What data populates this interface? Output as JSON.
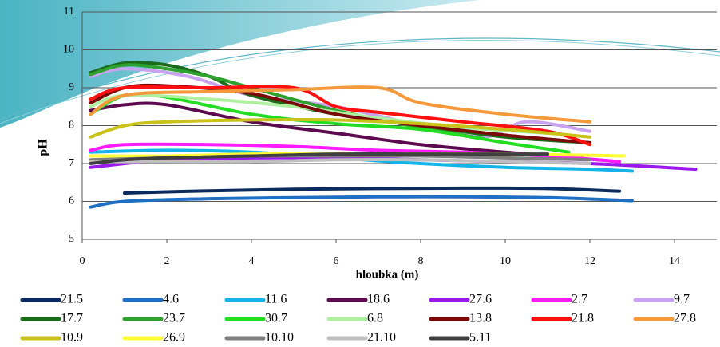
{
  "chart_data": {
    "type": "line",
    "x_label": "hloubka (m)",
    "y_label": "pH",
    "xlim": [
      0,
      15
    ],
    "xticks": [
      0,
      2,
      4,
      6,
      8,
      10,
      12,
      14
    ],
    "ylim": [
      5,
      11
    ],
    "yticks": [
      5,
      6,
      7,
      8,
      9,
      10,
      11
    ],
    "grid": true,
    "legend": "bottom",
    "series": [
      {
        "name": "21.5",
        "color": "#0b2b5e",
        "x": [
          1,
          3,
          5,
          7,
          9,
          11,
          12.7
        ],
        "values": [
          6.22,
          6.28,
          6.32,
          6.34,
          6.35,
          6.34,
          6.27
        ]
      },
      {
        "name": "4.6",
        "color": "#1f6fc5",
        "x": [
          0.2,
          1,
          3,
          5,
          7,
          9,
          11,
          13
        ],
        "values": [
          5.85,
          6.0,
          6.07,
          6.1,
          6.12,
          6.12,
          6.1,
          6.02
        ]
      },
      {
        "name": "11.6",
        "color": "#14b4e8",
        "x": [
          0.2,
          2,
          4,
          6,
          8,
          10,
          12,
          13
        ],
        "values": [
          7.3,
          7.35,
          7.3,
          7.15,
          7.0,
          6.9,
          6.85,
          6.8
        ]
      },
      {
        "name": "18.6",
        "color": "#5c0a4f",
        "x": [
          0.2,
          1,
          2,
          4,
          6,
          8,
          10,
          12.7
        ],
        "values": [
          8.4,
          8.55,
          8.55,
          8.1,
          7.8,
          7.5,
          7.3,
          7.05
        ]
      },
      {
        "name": "27.6",
        "color": "#9a1aeb",
        "x": [
          0.2,
          2,
          4,
          6,
          8,
          10,
          12,
          14.5
        ],
        "values": [
          6.9,
          7.1,
          7.15,
          7.15,
          7.1,
          7.05,
          7.0,
          6.85
        ]
      },
      {
        "name": "2.7",
        "color": "#ff1aff",
        "x": [
          0.2,
          1,
          3,
          5,
          7,
          9,
          11,
          12.7
        ],
        "values": [
          7.35,
          7.5,
          7.5,
          7.45,
          7.35,
          7.3,
          7.2,
          7.05
        ]
      },
      {
        "name": "9.7",
        "color": "#c9a3f0",
        "x": [
          0.2,
          1,
          2.5,
          4,
          6,
          8,
          9.5,
          10.5,
          12
        ],
        "values": [
          9.3,
          9.5,
          9.3,
          8.8,
          8.5,
          8.0,
          7.7,
          8.1,
          7.85
        ]
      },
      {
        "name": "17.7",
        "color": "#1a6b1a",
        "x": [
          0.2,
          1,
          2,
          3,
          4,
          6,
          8,
          10,
          12
        ],
        "values": [
          9.4,
          9.65,
          9.6,
          9.3,
          8.8,
          8.3,
          8.0,
          7.7,
          7.55
        ]
      },
      {
        "name": "23.7",
        "color": "#2ea12e",
        "x": [
          0.2,
          1,
          2,
          3,
          4,
          6,
          8,
          9.5
        ],
        "values": [
          9.35,
          9.6,
          9.5,
          9.3,
          9.0,
          8.4,
          7.95,
          7.65
        ]
      },
      {
        "name": "30.7",
        "color": "#22dd22",
        "x": [
          0.2,
          1,
          2,
          4,
          6,
          8,
          10,
          11.5
        ],
        "values": [
          8.3,
          8.8,
          8.75,
          8.3,
          8.05,
          7.9,
          7.55,
          7.3
        ]
      },
      {
        "name": "6.8",
        "color": "#aef0a0",
        "x": [
          0.2,
          1,
          3,
          5,
          7,
          9,
          11
        ],
        "values": [
          8.5,
          8.8,
          8.7,
          8.5,
          8.2,
          7.95,
          7.8
        ]
      },
      {
        "name": "13.8",
        "color": "#7a0a0a",
        "x": [
          0.2,
          1,
          2,
          4,
          6,
          8,
          10,
          12
        ],
        "values": [
          8.6,
          9.0,
          9.05,
          8.85,
          8.3,
          8.0,
          7.75,
          7.55
        ]
      },
      {
        "name": "21.8",
        "color": "#ff1010",
        "x": [
          0.2,
          1,
          3,
          5,
          6,
          7,
          9,
          11,
          12
        ],
        "values": [
          8.7,
          9.0,
          9.0,
          9.0,
          8.5,
          8.35,
          8.1,
          7.85,
          7.5
        ]
      },
      {
        "name": "27.8",
        "color": "#f59a3c",
        "x": [
          0.2,
          1,
          3,
          5,
          7,
          8,
          10,
          12
        ],
        "values": [
          8.3,
          8.8,
          8.9,
          8.95,
          9.0,
          8.6,
          8.3,
          8.1
        ]
      },
      {
        "name": "10.9",
        "color": "#c9c21a",
        "x": [
          0.2,
          1,
          2,
          4,
          6,
          8,
          10,
          12
        ],
        "values": [
          7.7,
          8.0,
          8.1,
          8.15,
          8.15,
          8.05,
          7.9,
          7.7
        ]
      },
      {
        "name": "26.9",
        "color": "#ffff33",
        "x": [
          0.2,
          2,
          4,
          6,
          8,
          10,
          12.8
        ],
        "values": [
          7.2,
          7.2,
          7.25,
          7.25,
          7.25,
          7.25,
          7.2
        ]
      },
      {
        "name": "10.10",
        "color": "#7f7f7f",
        "x": [
          0.2,
          2,
          4,
          6,
          8,
          10,
          12
        ],
        "values": [
          7.1,
          7.15,
          7.2,
          7.2,
          7.2,
          7.15,
          7.1
        ]
      },
      {
        "name": "21.10",
        "color": "#bfbfbf",
        "x": [
          0.2,
          2,
          4,
          6,
          8,
          10,
          12
        ],
        "values": [
          7.05,
          7.05,
          7.05,
          7.1,
          7.1,
          7.05,
          7.0
        ]
      },
      {
        "name": "5.11",
        "color": "#404040",
        "x": [
          0.2,
          1,
          2,
          4,
          6,
          8,
          10,
          11
        ],
        "values": [
          7.0,
          7.1,
          7.15,
          7.2,
          7.25,
          7.25,
          7.25,
          7.25
        ]
      }
    ]
  }
}
